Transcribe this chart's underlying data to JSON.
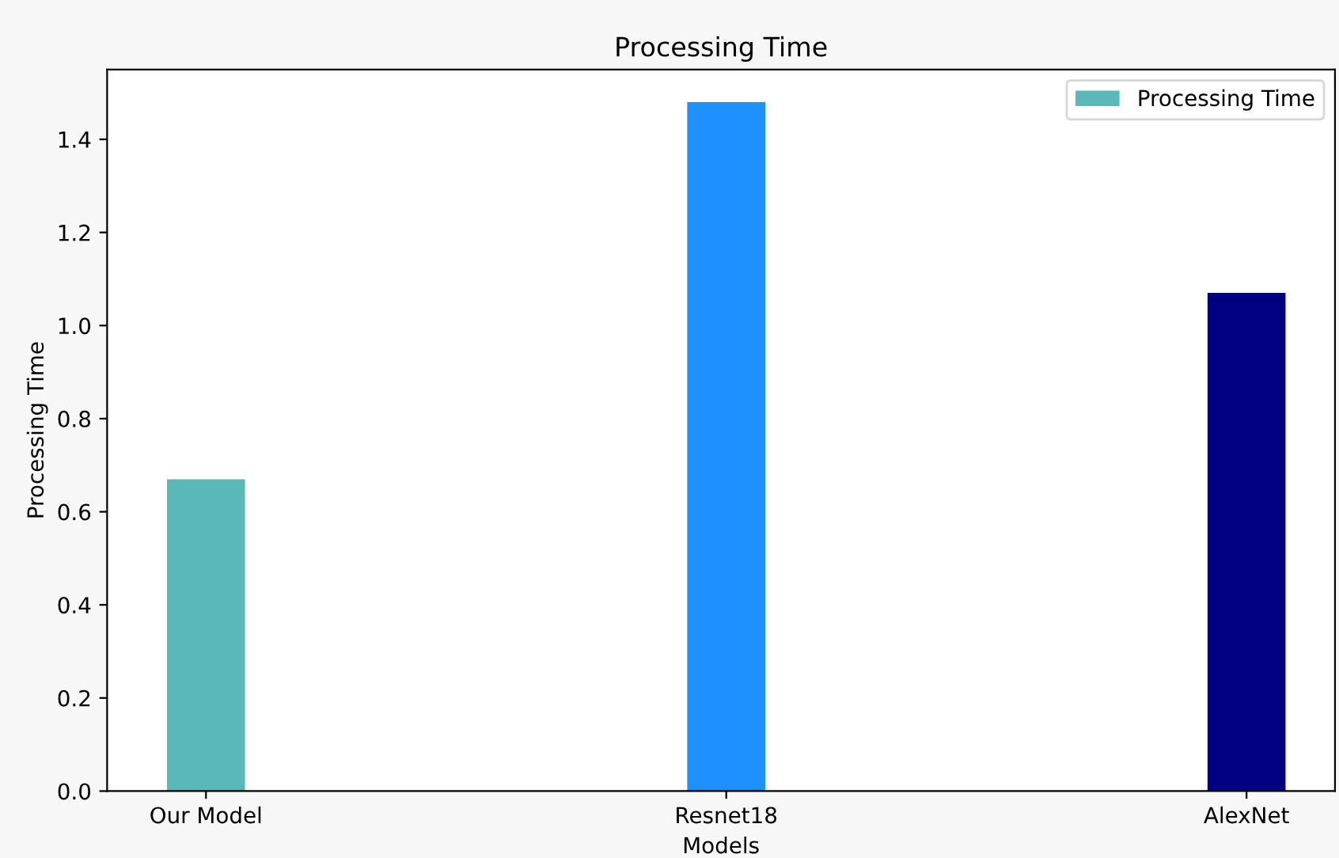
{
  "chart_data": {
    "type": "bar",
    "title": "Processing Time",
    "xlabel": "Models",
    "ylabel": "Processing Time",
    "categories": [
      "Our Model",
      "Resnet18",
      "AlexNet"
    ],
    "series": [
      {
        "name": "Processing Time",
        "colors": [
          "#5bb8b8",
          "#1e90ff",
          "#000080"
        ],
        "values": [
          0.67,
          1.48,
          1.07
        ]
      }
    ],
    "ylim": [
      0,
      1.55
    ],
    "yticks": [
      {
        "value": 0,
        "label": "0.0"
      },
      0.2,
      0.4,
      0.6,
      0.8,
      {
        "value": 1,
        "label": "1.0"
      },
      1.2,
      1.4
    ],
    "legend": "top right",
    "grid": false
  }
}
